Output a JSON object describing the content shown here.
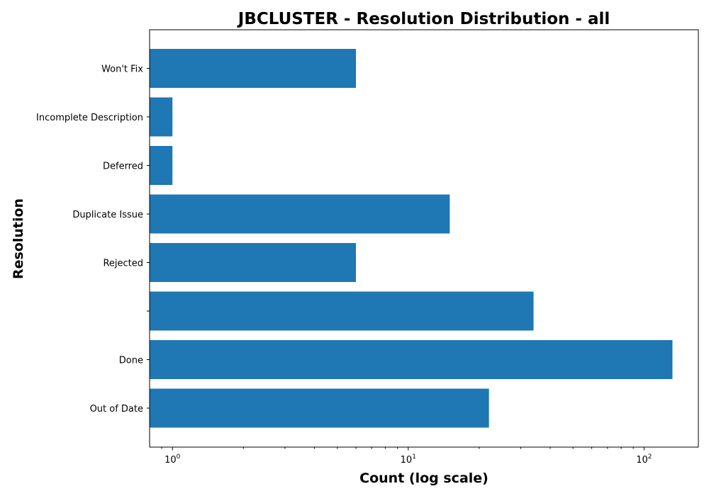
{
  "chart_data": {
    "type": "bar",
    "orientation": "horizontal",
    "title": "JBCLUSTER - Resolution Distribution - all",
    "xlabel": "Count (log scale)",
    "ylabel": "Resolution",
    "x_scale": "log",
    "xlim": [
      0.8,
      170
    ],
    "x_ticks": [
      {
        "base": "10",
        "exp": "0",
        "value": 1
      },
      {
        "base": "10",
        "exp": "1",
        "value": 10
      },
      {
        "base": "10",
        "exp": "2",
        "value": 100
      }
    ],
    "categories": [
      "Won't Fix",
      "Incomplete Description",
      "Deferred",
      "Duplicate Issue",
      "Rejected",
      "",
      "Done",
      "Out of Date"
    ],
    "values": [
      6,
      1,
      1,
      15,
      6,
      34,
      132,
      22
    ],
    "bar_color": "#1f77b4",
    "grid": false
  }
}
